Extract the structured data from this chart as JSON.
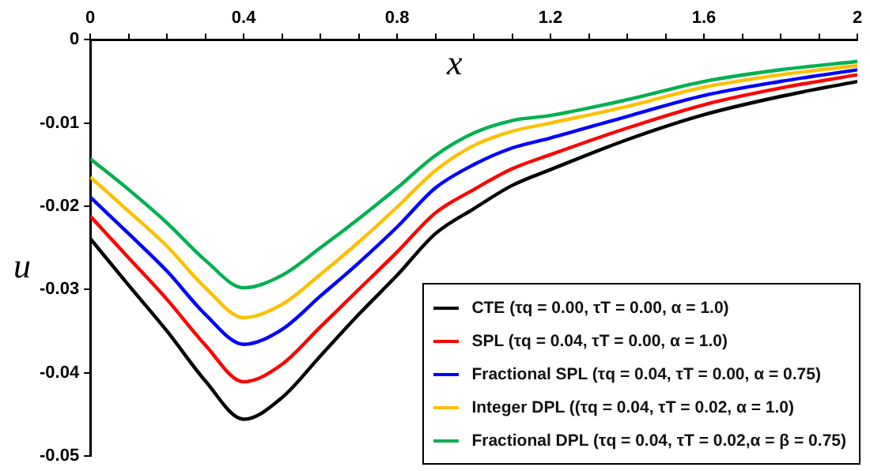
{
  "chart_data": {
    "type": "line",
    "xlabel": "x",
    "ylabel": "u",
    "x": [
      0,
      0.1,
      0.2,
      0.3,
      0.4,
      0.5,
      0.6,
      0.7,
      0.8,
      0.9,
      1.0,
      1.1,
      1.2,
      1.4,
      1.6,
      1.8,
      2.0
    ],
    "series": [
      {
        "name": "CTE  (τq = 0.00, τT = 0.00, α = 1.0)",
        "color": "#000000",
        "values": [
          -0.0239,
          -0.0295,
          -0.035,
          -0.041,
          -0.0456,
          -0.043,
          -0.038,
          -0.033,
          -0.0283,
          -0.0233,
          -0.0203,
          -0.0175,
          -0.0156,
          -0.012,
          -0.009,
          -0.0068,
          -0.005
        ]
      },
      {
        "name": "SPL (τq = 0.04, τT = 0.00, α = 1.0)",
        "color": "#ff0000",
        "values": [
          -0.0212,
          -0.0262,
          -0.0312,
          -0.0367,
          -0.0411,
          -0.039,
          -0.0345,
          -0.03,
          -0.0255,
          -0.0208,
          -0.018,
          -0.0155,
          -0.0138,
          -0.0106,
          -0.0078,
          -0.0058,
          -0.0042
        ]
      },
      {
        "name": "Fractional SPL (τq = 0.04, τT = 0.00, α = 0.75)",
        "color": "#0000ff",
        "values": [
          -0.0189,
          -0.0233,
          -0.0278,
          -0.033,
          -0.0366,
          -0.0348,
          -0.0308,
          -0.0268,
          -0.0225,
          -0.0178,
          -0.015,
          -0.013,
          -0.0118,
          -0.0092,
          -0.0067,
          -0.005,
          -0.0036
        ]
      },
      {
        "name": "Integer DPL ((τq = 0.04, τT = 0.02, α = 1.0)",
        "color": "#ffc000",
        "values": [
          -0.0165,
          -0.0206,
          -0.0248,
          -0.0298,
          -0.0334,
          -0.0318,
          -0.0282,
          -0.0243,
          -0.0201,
          -0.0157,
          -0.0127,
          -0.011,
          -0.01,
          -0.008,
          -0.0057,
          -0.0042,
          -0.0031
        ]
      },
      {
        "name": "Fractional DPL (τq = 0.04, τT = 0.02,α = β = 0.75)",
        "color": "#00b050",
        "values": [
          -0.0143,
          -0.018,
          -0.022,
          -0.0265,
          -0.0298,
          -0.0283,
          -0.025,
          -0.0215,
          -0.0178,
          -0.0139,
          -0.0112,
          -0.0097,
          -0.0091,
          -0.0072,
          -0.005,
          -0.0036,
          -0.0026
        ]
      }
    ],
    "xlim": [
      0,
      2
    ],
    "xticks": [
      0,
      {
        "value": 0.1,
        "label": null
      },
      {
        "value": 0.2,
        "label": null
      },
      {
        "value": 0.3,
        "label": null
      },
      0.4,
      {
        "value": 0.5,
        "label": null
      },
      {
        "value": 0.6,
        "label": null
      },
      {
        "value": 0.7,
        "label": null
      },
      0.8,
      {
        "value": 0.9,
        "label": null
      },
      {
        "value": 1.0,
        "label": null
      },
      {
        "value": 1.1,
        "label": null
      },
      1.2,
      {
        "value": 1.3,
        "label": null
      },
      {
        "value": 1.4,
        "label": null
      },
      {
        "value": 1.5,
        "label": null
      },
      1.6,
      {
        "value": 1.7,
        "label": null
      },
      {
        "value": 1.8,
        "label": null
      },
      {
        "value": 1.9,
        "label": null
      },
      2
    ],
    "ylim": [
      -0.05,
      0
    ],
    "yticks": [
      0,
      -0.01,
      -0.02,
      -0.03,
      -0.04,
      -0.05
    ],
    "grid": false,
    "legend": "bottom right",
    "marker": "none",
    "line_style": "solid"
  }
}
